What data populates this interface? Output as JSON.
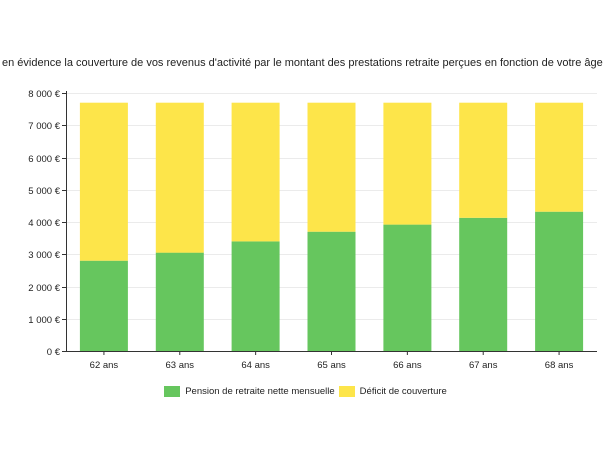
{
  "chart_data": {
    "type": "bar",
    "stacked": true,
    "title": "en évidence la couverture de vos revenus d'activité par le montant des prestations retraite perçues en fonction de votre âge",
    "xlabel": "",
    "ylabel": "",
    "categories": [
      "62 ans",
      "63 ans",
      "64 ans",
      "65 ans",
      "66 ans",
      "67 ans",
      "68 ans"
    ],
    "ylim": [
      0,
      8000
    ],
    "yticks": [
      0,
      1000,
      2000,
      3000,
      4000,
      5000,
      6000,
      7000,
      8000
    ],
    "ytick_labels": [
      "0 €",
      "1 000 €",
      "2 000 €",
      "3 000 €",
      "4 000 €",
      "5 000 €",
      "6 000 €",
      "7 000 €",
      "8 000 €"
    ],
    "grid": true,
    "legend_position": "bottom",
    "series": [
      {
        "name": "Pension de retraite nette mensuelle",
        "color": "#66c65e",
        "values": [
          2800,
          3050,
          3400,
          3700,
          3920,
          4130,
          4320
        ]
      },
      {
        "name": "Déficit de couverture",
        "color": "#fde54a",
        "values": [
          4900,
          4650,
          4300,
          4000,
          3780,
          3570,
          3380
        ]
      }
    ]
  }
}
